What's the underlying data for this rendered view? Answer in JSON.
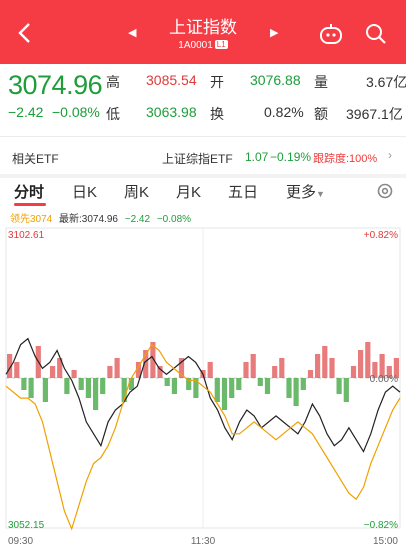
{
  "header": {
    "title": "上证指数",
    "code": "1A0001",
    "level": "L1",
    "bg_color": "#f53c45"
  },
  "quote": {
    "price": "3074.96",
    "change": "−2.42",
    "change_pct": "−0.08%",
    "high_label": "高",
    "high": "3085.54",
    "low_label": "低",
    "low": "3063.98",
    "open_label": "开",
    "open": "3076.88",
    "turnover_label": "换",
    "turnover": "0.82%",
    "volume_label": "量",
    "volume": "3.67亿",
    "amount_label": "额",
    "amount": "3967.1亿"
  },
  "etf": {
    "label": "相关ETF",
    "name": "上证综指ETF",
    "price": "1.07",
    "change_pct": "−0.19%",
    "tracking": "跟踪度:100%"
  },
  "tabs": [
    {
      "label": "分时",
      "active": true
    },
    {
      "label": "日K"
    },
    {
      "label": "周K"
    },
    {
      "label": "月K"
    },
    {
      "label": "五日"
    },
    {
      "label": "更多"
    }
  ],
  "legend": {
    "lead": "领先3074",
    "latest": "最新:3074.96",
    "chg": "−2.42",
    "pct": "−0.08%"
  },
  "chart_data": {
    "type": "line",
    "y_top": "3102.61",
    "y_bottom": "3052.15",
    "pct_top": "+0.82%",
    "pct_mid": "0.00%",
    "pct_bottom": "−0.82%",
    "x_labels": [
      "09:30",
      "11:30",
      "15:00"
    ],
    "series": [
      {
        "color": "#222222",
        "values": [
          3078,
          3080,
          3083,
          3084,
          3081,
          3079,
          3080,
          3082,
          3079,
          3077,
          3074,
          3070,
          3068,
          3066,
          3070,
          3072,
          3073,
          3075,
          3076,
          3080,
          3081,
          3079,
          3078,
          3079,
          3080,
          3081,
          3080,
          3078,
          3074,
          3072,
          3069,
          3067,
          3070,
          3072,
          3071,
          3069,
          3070,
          3071,
          3070,
          3069,
          3068,
          3070,
          3073,
          3071,
          3068,
          3066,
          3067,
          3069,
          3067,
          3065,
          3068,
          3072,
          3075,
          3076,
          3075
        ]
      },
      {
        "color": "#f0a000",
        "values": [
          3076,
          3075,
          3074,
          3074,
          3073,
          3070,
          3065,
          3060,
          3055,
          3052,
          3056,
          3060,
          3063,
          3064,
          3066,
          3069,
          3073,
          3077,
          3079,
          3081,
          3083,
          3082,
          3080,
          3079,
          3078,
          3077,
          3077,
          3076,
          3075,
          3073,
          3071,
          3068,
          3068,
          3069,
          3070,
          3069,
          3068,
          3067,
          3068,
          3069,
          3070,
          3069,
          3068,
          3066,
          3064,
          3062,
          3060,
          3058,
          3057,
          3059,
          3063,
          3066,
          3069,
          3072,
          3074
        ]
      }
    ],
    "bars": [
      6,
      4,
      -3,
      -5,
      8,
      -6,
      3,
      5,
      -4,
      2,
      -3,
      -5,
      -8,
      -4,
      3,
      5,
      -6,
      -3,
      4,
      7,
      9,
      3,
      -2,
      -4,
      5,
      -3,
      -5,
      2,
      4,
      -6,
      -8,
      -5,
      -3,
      4,
      6,
      -2,
      -4,
      3,
      5,
      -5,
      -7,
      -3,
      2,
      6,
      8,
      5,
      -4,
      -6,
      3,
      7,
      9,
      4,
      6,
      3,
      5
    ],
    "bar_up_color": "#e05050",
    "bar_down_color": "#3aa13a"
  }
}
